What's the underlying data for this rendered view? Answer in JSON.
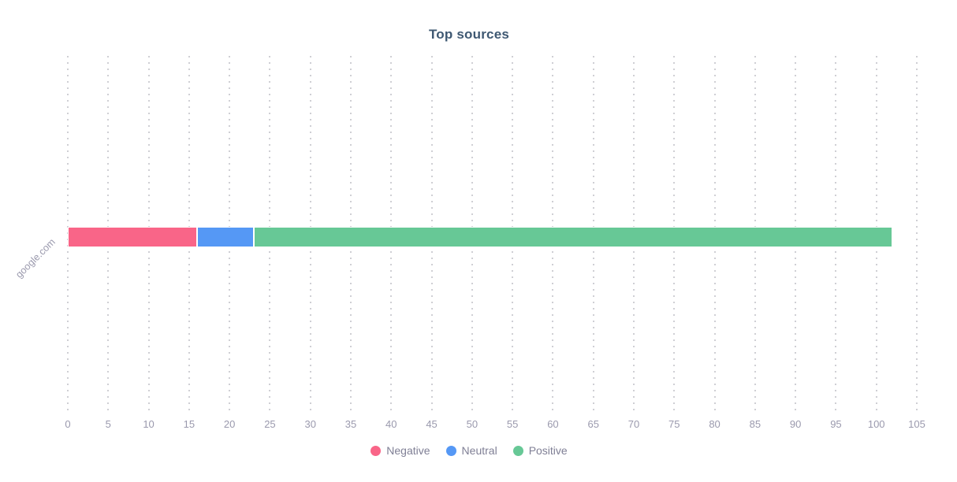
{
  "chart_data": {
    "type": "bar",
    "orientation": "horizontal",
    "stacked": true,
    "title": "Top sources",
    "xlabel": "",
    "ylabel": "",
    "categories": [
      "google.com"
    ],
    "series": [
      {
        "name": "Negative",
        "color": "#f96588",
        "values": [
          16
        ]
      },
      {
        "name": "Neutral",
        "color": "#5598f5",
        "values": [
          7
        ]
      },
      {
        "name": "Positive",
        "color": "#67c896",
        "values": [
          79
        ]
      }
    ],
    "stack_total": 102,
    "x_axis": {
      "min": 0,
      "max": 105,
      "ticks": [
        0,
        5,
        10,
        15,
        20,
        25,
        30,
        35,
        40,
        45,
        50,
        55,
        60,
        65,
        70,
        75,
        80,
        85,
        90,
        95,
        100,
        105
      ]
    },
    "grid": "dotted-vertical",
    "legend_position": "bottom",
    "legend_items": [
      "Negative",
      "Neutral",
      "Positive"
    ],
    "colors": {
      "title_text": "#3e5872",
      "axis_text": "#9a99ad",
      "legend_text": "#7f7f95",
      "gridline": "#cfcfd4",
      "background": "#ffffff"
    }
  }
}
